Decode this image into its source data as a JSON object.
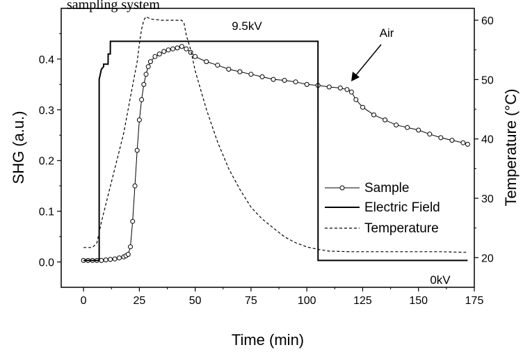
{
  "top_text": "sampling system",
  "chart_data": {
    "type": "line",
    "xlabel": "Time (min)",
    "ylabel": "SHG (a.u.)",
    "y2label": "Temperature (°C)",
    "xlim": [
      -10,
      175
    ],
    "ylim": [
      -0.05,
      0.5
    ],
    "y2lim": [
      15,
      62
    ],
    "xticks": [
      0,
      25,
      50,
      75,
      100,
      125,
      150,
      175
    ],
    "yticks": [
      0.0,
      0.1,
      0.2,
      0.3,
      0.4
    ],
    "y2ticks": [
      20,
      30,
      40,
      50,
      60
    ],
    "xtick_labels": [
      "0",
      "25",
      "50",
      "75",
      "100",
      "125",
      "150",
      "175"
    ],
    "ytick_labels": [
      "0.0",
      "0.1",
      "0.2",
      "0.3",
      "0.4"
    ],
    "y2tick_labels": [
      "20",
      "30",
      "40",
      "50",
      "60"
    ],
    "grid": false,
    "legend_position": "right-middle",
    "annotations": [
      "9.5kV",
      "0kV",
      "Air"
    ],
    "series": [
      {
        "name": "Sample",
        "style": "line-with-open-circles",
        "axis": "left",
        "x": [
          0,
          2,
          4,
          6,
          8,
          10,
          12,
          14,
          16,
          18,
          19,
          20,
          21,
          22,
          23,
          24,
          25,
          26,
          27,
          28,
          29,
          30,
          32,
          34,
          36,
          38,
          40,
          42,
          44,
          46,
          48,
          50,
          55,
          60,
          65,
          70,
          75,
          80,
          85,
          90,
          95,
          100,
          105,
          110,
          115,
          118,
          120,
          122,
          125,
          130,
          135,
          140,
          145,
          150,
          155,
          160,
          165,
          170,
          172
        ],
        "values": [
          0.003,
          0.003,
          0.003,
          0.003,
          0.003,
          0.004,
          0.005,
          0.006,
          0.008,
          0.01,
          0.012,
          0.015,
          0.03,
          0.08,
          0.15,
          0.22,
          0.28,
          0.32,
          0.35,
          0.37,
          0.385,
          0.395,
          0.405,
          0.41,
          0.415,
          0.418,
          0.42,
          0.422,
          0.425,
          0.42,
          0.413,
          0.405,
          0.395,
          0.388,
          0.38,
          0.375,
          0.37,
          0.365,
          0.36,
          0.358,
          0.355,
          0.35,
          0.348,
          0.345,
          0.343,
          0.34,
          0.335,
          0.32,
          0.305,
          0.29,
          0.28,
          0.27,
          0.265,
          0.26,
          0.252,
          0.245,
          0.24,
          0.235,
          0.232
        ]
      },
      {
        "name": "Electric Field",
        "style": "solid-line",
        "axis": "left",
        "x": [
          0,
          7,
          7.01,
          8,
          9,
          9.01,
          11,
          11.01,
          12,
          12.01,
          105,
          105.01,
          172
        ],
        "values": [
          0.003,
          0.003,
          0.36,
          0.38,
          0.385,
          0.39,
          0.39,
          0.41,
          0.41,
          0.435,
          0.435,
          0.003,
          0.003
        ]
      },
      {
        "name": "Temperature",
        "style": "dashed-line",
        "axis": "right",
        "x": [
          0,
          2,
          4,
          6,
          8,
          10,
          12,
          14,
          16,
          18,
          20,
          22,
          24,
          25,
          26,
          27,
          28,
          30,
          35,
          40,
          44,
          45,
          46,
          48,
          50,
          55,
          60,
          65,
          70,
          75,
          80,
          85,
          90,
          95,
          100,
          105,
          110,
          120,
          130,
          140,
          150,
          160,
          170,
          172
        ],
        "values": [
          21.7,
          21.7,
          21.7,
          22.5,
          26,
          29,
          32,
          35,
          38,
          41,
          45,
          49,
          53,
          56,
          58.5,
          60,
          60.6,
          60.2,
          60,
          60,
          60,
          59.5,
          57.5,
          55,
          51.5,
          45,
          39.5,
          35,
          31.5,
          28.5,
          26.5,
          25,
          23.5,
          22.5,
          21.8,
          21.4,
          21.1,
          21,
          21,
          21,
          21,
          21,
          20.9,
          20.9
        ]
      }
    ]
  }
}
